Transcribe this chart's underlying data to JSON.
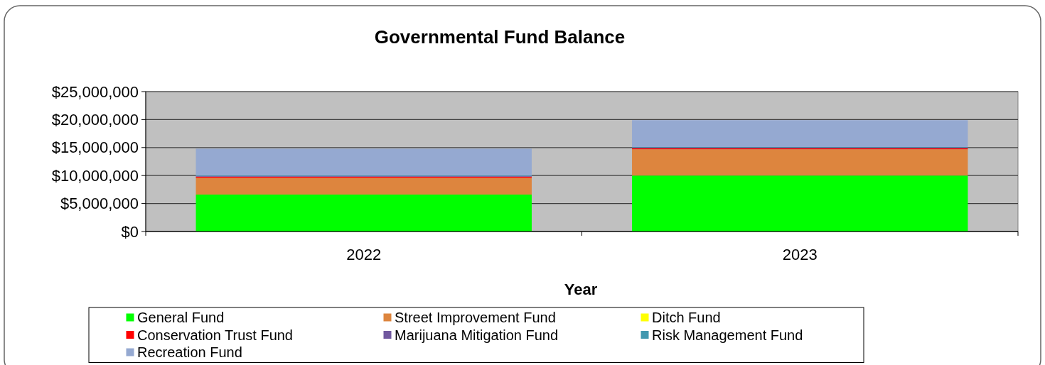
{
  "chart_data": {
    "type": "bar",
    "title": "Governmental Fund Balance",
    "xlabel": "Year",
    "categories": [
      "2022",
      "2023"
    ],
    "stacked": true,
    "ylim": [
      0,
      25000000
    ],
    "yticks": [
      {
        "value": 0,
        "label": "$0"
      },
      {
        "value": 5000000,
        "label": "$5,000,000"
      },
      {
        "value": 10000000,
        "label": "$10,000,000"
      },
      {
        "value": 15000000,
        "label": "$15,000,000"
      },
      {
        "value": 20000000,
        "label": "$20,000,000"
      },
      {
        "value": 25000000,
        "label": "$25,000,000"
      }
    ],
    "grid": "y",
    "legend": "bottom",
    "series": [
      {
        "name": "General Fund",
        "color": "#00ff00",
        "values": [
          6600000,
          10000000
        ]
      },
      {
        "name": "Street Improvement Fund",
        "color": "#dd853e",
        "values": [
          3000000,
          4700000
        ]
      },
      {
        "name": "Ditch Fund",
        "color": "#ffff00",
        "values": [
          null,
          null
        ]
      },
      {
        "name": "Conservation Trust Fund",
        "color": "#ff0000",
        "values": [
          200000,
          200000
        ]
      },
      {
        "name": "Marijuana Mitigation Fund",
        "color": "#71589f",
        "values": [
          100000,
          100000
        ]
      },
      {
        "name": "Risk Management Fund",
        "color": "#4198af",
        "values": [
          100000,
          100000
        ]
      },
      {
        "name": "Recreation Fund",
        "color": "#95a9d1",
        "values": [
          4800000,
          4800000
        ]
      }
    ]
  }
}
